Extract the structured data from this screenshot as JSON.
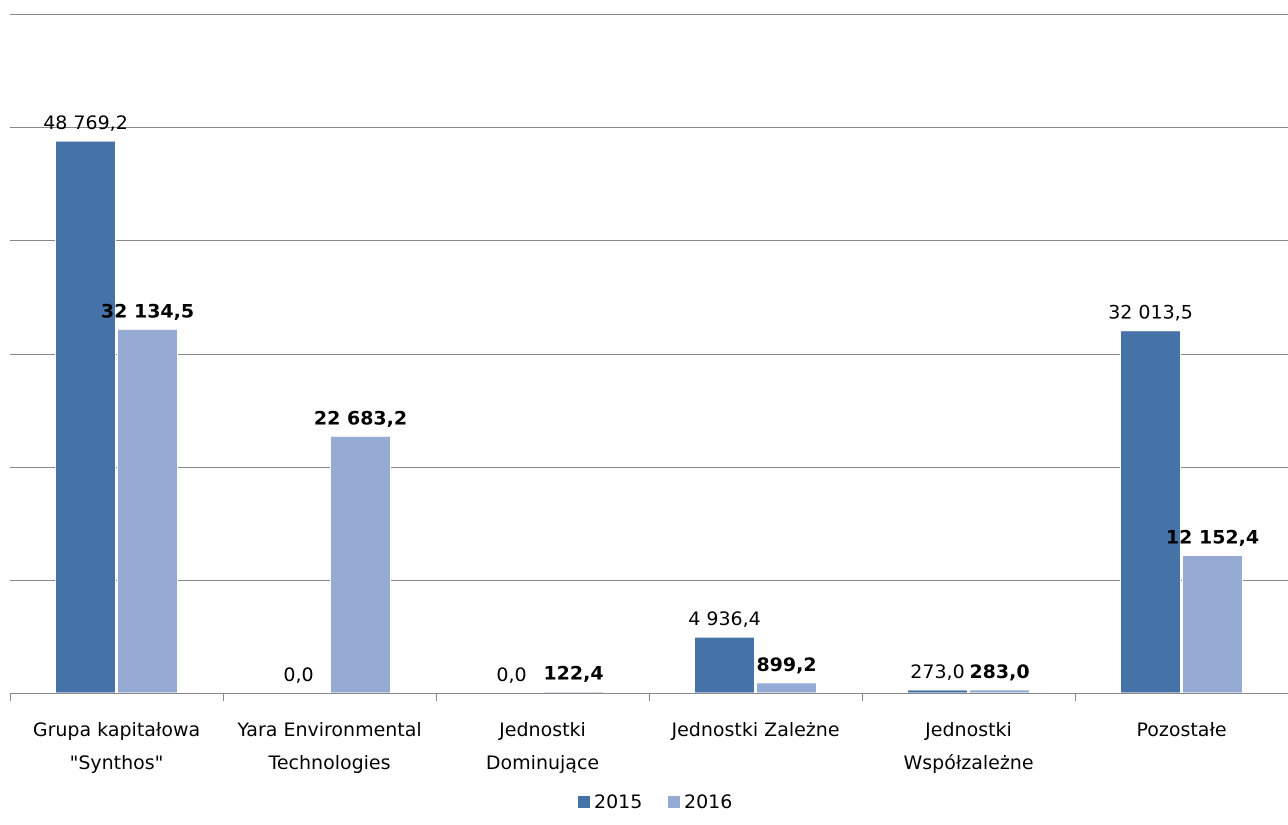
{
  "chart_data": {
    "type": "bar",
    "categories": [
      [
        "Grupa kapitałowa",
        "\"Synthos\""
      ],
      [
        "Yara Environmental",
        "Technologies"
      ],
      [
        "Jednostki",
        "Dominujące"
      ],
      [
        "Jednostki Zależne"
      ],
      [
        "Jednostki",
        "Współzależne"
      ],
      [
        "Pozostałe"
      ]
    ],
    "series": [
      {
        "name": "2015",
        "color": "#4572A7",
        "values": [
          48769.2,
          0.0,
          0.0,
          4936.4,
          273.0,
          32013.5
        ],
        "labels": [
          "48 769,2",
          "0,0",
          "0,0",
          "4 936,4",
          "273,0",
          "32 013,5"
        ],
        "label_bold": false
      },
      {
        "name": "2016",
        "color": "#95ABD3",
        "values": [
          32134.5,
          22683.2,
          122.4,
          899.2,
          283.0,
          12152.4
        ],
        "labels": [
          "32 134,5",
          "22 683,2",
          "122,4",
          "899,2",
          "283,0",
          "12 152,4"
        ],
        "label_bold": true
      }
    ],
    "ylim": [
      0,
      60000
    ],
    "grid": true,
    "legend": "bottom-center"
  }
}
